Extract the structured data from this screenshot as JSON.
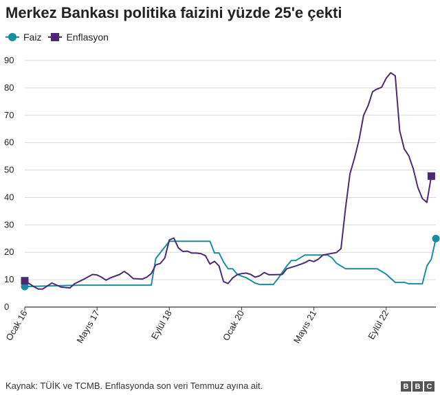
{
  "chart_data": {
    "type": "line",
    "title": "Merkez Bankası politika faizini yüzde 25'e çekti",
    "xlabel": "",
    "ylabel": "",
    "ylim": [
      0,
      90
    ],
    "yticks": [
      0,
      10,
      20,
      30,
      40,
      50,
      60,
      70,
      80,
      90
    ],
    "grid": true,
    "legend_position": "top-left",
    "xticks": [
      {
        "label": "Ocak 16",
        "date": "2016-01"
      },
      {
        "label": "Mayıs 17",
        "date": "2017-05"
      },
      {
        "label": "Eylül 18",
        "date": "2018-09"
      },
      {
        "label": "Ocak 20",
        "date": "2020-01"
      },
      {
        "label": "Mayıs 21",
        "date": "2021-05"
      },
      {
        "label": "Eylül 22",
        "date": "2022-09"
      }
    ],
    "series": [
      {
        "name": "Faiz",
        "color": "#1a8ca0",
        "marker": "circle",
        "points": [
          [
            "2016-01",
            7.5
          ],
          [
            "2017-01",
            8
          ],
          [
            "2018-01",
            8
          ],
          [
            "2018-05",
            8
          ],
          [
            "2018-06",
            17.75
          ],
          [
            "2018-09",
            24
          ],
          [
            "2019-06",
            24
          ],
          [
            "2019-07",
            19.75
          ],
          [
            "2019-08",
            19.75
          ],
          [
            "2019-09",
            16.5
          ],
          [
            "2019-10",
            14
          ],
          [
            "2019-11",
            14
          ],
          [
            "2019-12",
            12
          ],
          [
            "2020-01",
            11.25
          ],
          [
            "2020-02",
            10.75
          ],
          [
            "2020-03",
            9.75
          ],
          [
            "2020-04",
            8.75
          ],
          [
            "2020-05",
            8.25
          ],
          [
            "2020-08",
            8.25
          ],
          [
            "2020-09",
            10.25
          ],
          [
            "2020-11",
            15
          ],
          [
            "2020-12",
            17
          ],
          [
            "2021-01",
            17
          ],
          [
            "2021-03",
            19
          ],
          [
            "2021-08",
            19
          ],
          [
            "2021-09",
            18
          ],
          [
            "2021-10",
            16
          ],
          [
            "2021-11",
            15
          ],
          [
            "2021-12",
            14
          ],
          [
            "2022-07",
            14
          ],
          [
            "2022-08",
            13
          ],
          [
            "2022-09",
            12
          ],
          [
            "2022-10",
            10.5
          ],
          [
            "2022-11",
            9
          ],
          [
            "2023-01",
            9
          ],
          [
            "2023-02",
            8.5
          ],
          [
            "2023-05",
            8.5
          ],
          [
            "2023-06",
            15
          ],
          [
            "2023-07",
            17.5
          ],
          [
            "2023-08",
            25
          ]
        ]
      },
      {
        "name": "Enflasyon",
        "color": "#4b2a73",
        "marker": "square",
        "points": [
          [
            "2016-01",
            9.6
          ],
          [
            "2016-03",
            7.5
          ],
          [
            "2016-04",
            6.6
          ],
          [
            "2016-05",
            6.6
          ],
          [
            "2016-07",
            8.8
          ],
          [
            "2016-09",
            7.3
          ],
          [
            "2016-11",
            7.0
          ],
          [
            "2016-12",
            8.5
          ],
          [
            "2017-02",
            10.1
          ],
          [
            "2017-04",
            11.9
          ],
          [
            "2017-05",
            11.7
          ],
          [
            "2017-06",
            10.9
          ],
          [
            "2017-07",
            9.8
          ],
          [
            "2017-08",
            10.7
          ],
          [
            "2017-10",
            11.9
          ],
          [
            "2017-11",
            13.0
          ],
          [
            "2017-12",
            11.9
          ],
          [
            "2018-01",
            10.4
          ],
          [
            "2018-03",
            10.2
          ],
          [
            "2018-04",
            10.9
          ],
          [
            "2018-05",
            12.2
          ],
          [
            "2018-06",
            15.4
          ],
          [
            "2018-07",
            15.9
          ],
          [
            "2018-08",
            17.9
          ],
          [
            "2018-09",
            24.5
          ],
          [
            "2018-10",
            25.2
          ],
          [
            "2018-11",
            21.6
          ],
          [
            "2018-12",
            20.3
          ],
          [
            "2019-01",
            20.4
          ],
          [
            "2019-02",
            19.7
          ],
          [
            "2019-03",
            19.7
          ],
          [
            "2019-04",
            19.5
          ],
          [
            "2019-05",
            18.7
          ],
          [
            "2019-06",
            15.7
          ],
          [
            "2019-07",
            16.7
          ],
          [
            "2019-08",
            15.0
          ],
          [
            "2019-09",
            9.3
          ],
          [
            "2019-10",
            8.6
          ],
          [
            "2019-11",
            10.6
          ],
          [
            "2019-12",
            11.8
          ],
          [
            "2020-01",
            12.2
          ],
          [
            "2020-02",
            12.4
          ],
          [
            "2020-03",
            11.9
          ],
          [
            "2020-04",
            10.9
          ],
          [
            "2020-05",
            11.4
          ],
          [
            "2020-06",
            12.6
          ],
          [
            "2020-07",
            11.8
          ],
          [
            "2020-08",
            11.8
          ],
          [
            "2020-10",
            11.9
          ],
          [
            "2020-11",
            14.0
          ],
          [
            "2021-01",
            15.0
          ],
          [
            "2021-02",
            15.6
          ],
          [
            "2021-03",
            16.2
          ],
          [
            "2021-04",
            17.1
          ],
          [
            "2021-05",
            16.6
          ],
          [
            "2021-06",
            17.5
          ],
          [
            "2021-07",
            19.0
          ],
          [
            "2021-08",
            19.3
          ],
          [
            "2021-09",
            19.6
          ],
          [
            "2021-10",
            19.9
          ],
          [
            "2021-11",
            21.3
          ],
          [
            "2021-12",
            36.1
          ],
          [
            "2022-01",
            48.7
          ],
          [
            "2022-02",
            54.4
          ],
          [
            "2022-03",
            61.1
          ],
          [
            "2022-04",
            70.0
          ],
          [
            "2022-05",
            73.5
          ],
          [
            "2022-06",
            78.6
          ],
          [
            "2022-07",
            79.6
          ],
          [
            "2022-08",
            80.2
          ],
          [
            "2022-09",
            83.5
          ],
          [
            "2022-10",
            85.5
          ],
          [
            "2022-11",
            84.4
          ],
          [
            "2022-12",
            64.3
          ],
          [
            "2023-01",
            57.7
          ],
          [
            "2023-02",
            55.2
          ],
          [
            "2023-03",
            50.5
          ],
          [
            "2023-04",
            43.7
          ],
          [
            "2023-05",
            39.6
          ],
          [
            "2023-06",
            38.2
          ],
          [
            "2023-07",
            47.8
          ]
        ]
      }
    ]
  },
  "footer": {
    "source": "Kaynak: TÜİK ve TCMB. Enflasyonda son veri Temmuz ayına ait."
  },
  "logo": {
    "letters": [
      "B",
      "B",
      "C"
    ]
  }
}
